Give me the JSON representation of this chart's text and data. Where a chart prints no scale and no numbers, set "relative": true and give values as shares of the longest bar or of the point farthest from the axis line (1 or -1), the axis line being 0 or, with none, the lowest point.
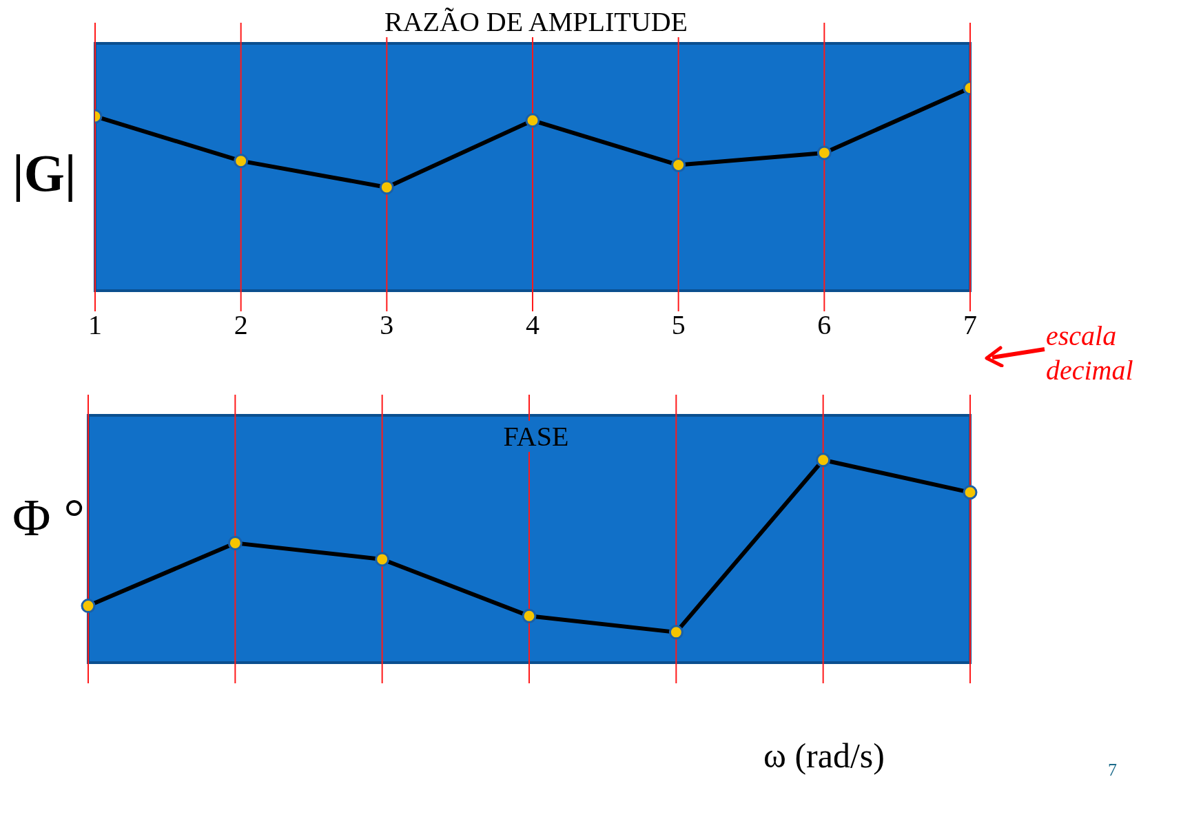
{
  "chart_data": [
    {
      "type": "line",
      "title": "RAZÃO DE AMPLITUDE",
      "ylabel": "|G|",
      "x": [
        1,
        2,
        3,
        4,
        5,
        6,
        7
      ],
      "xlim": [
        1,
        7
      ],
      "xticks": [
        1,
        2,
        3,
        4,
        5,
        6,
        7
      ],
      "relative": true,
      "grid": "x",
      "marker": "circle",
      "tick_labels": "x",
      "annotations": [
        "escala decimal"
      ],
      "series": [
        {
          "color": "#000000",
          "values": [
            0.86,
            0.64,
            0.51,
            0.84,
            0.62,
            0.68,
            1
          ]
        }
      ]
    },
    {
      "type": "line",
      "title": "FASE",
      "ylabel": "Φ °",
      "xlabel": "ω (rad/s)",
      "categories": [
        null,
        null,
        null,
        null,
        null,
        null,
        null
      ],
      "relative": true,
      "grid": "x",
      "marker": "circle",
      "annotations": [
        "7"
      ],
      "series": [
        {
          "color": "#000000",
          "values": [
            0.28,
            0.59,
            0.51,
            0.23,
            0.15,
            1,
            0.84
          ]
        }
      ]
    }
  ]
}
